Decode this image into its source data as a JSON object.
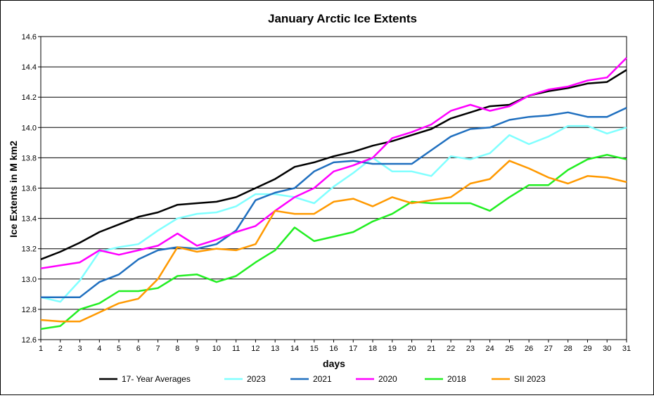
{
  "chart_data": {
    "type": "line",
    "title": "January Arctic Ice Extents",
    "xlabel": "days",
    "ylabel": "Ice Extents in M km2",
    "xlim": [
      1,
      31
    ],
    "ylim": [
      12.6,
      14.6
    ],
    "y_ticks": [
      "12.6",
      "12.8",
      "13.0",
      "13.2",
      "13.4",
      "13.6",
      "13.8",
      "14.0",
      "14.2",
      "14.4",
      "14.6"
    ],
    "x": [
      1,
      2,
      3,
      4,
      5,
      6,
      7,
      8,
      9,
      10,
      11,
      12,
      13,
      14,
      15,
      16,
      17,
      18,
      19,
      20,
      21,
      22,
      23,
      24,
      25,
      26,
      27,
      28,
      29,
      30,
      31
    ],
    "grid": "horizontal",
    "legend_position": "bottom",
    "series": [
      {
        "name": "17- Year Averages",
        "color": "#000000",
        "values": [
          13.13,
          13.18,
          13.24,
          13.31,
          13.36,
          13.41,
          13.44,
          13.49,
          13.5,
          13.51,
          13.54,
          13.6,
          13.66,
          13.74,
          13.77,
          13.81,
          13.84,
          13.88,
          13.91,
          13.95,
          13.99,
          14.06,
          14.1,
          14.14,
          14.15,
          14.21,
          14.24,
          14.26,
          14.29,
          14.3,
          14.38
        ]
      },
      {
        "name": "2023",
        "color": "#80ffff",
        "values": [
          12.88,
          12.85,
          12.99,
          13.18,
          13.21,
          13.23,
          13.32,
          13.4,
          13.43,
          13.44,
          13.48,
          13.56,
          13.56,
          13.54,
          13.5,
          13.61,
          13.7,
          13.8,
          13.71,
          13.71,
          13.68,
          13.81,
          13.79,
          13.83,
          13.95,
          13.89,
          13.94,
          14.01,
          14.01,
          13.96,
          14.0
        ]
      },
      {
        "name": "2021",
        "color": "#1f6fbf",
        "values": [
          12.88,
          12.88,
          12.88,
          12.98,
          13.03,
          13.13,
          13.19,
          13.21,
          13.2,
          13.23,
          13.32,
          13.52,
          13.57,
          13.6,
          13.71,
          13.77,
          13.78,
          13.76,
          13.76,
          13.76,
          13.85,
          13.94,
          13.99,
          14.0,
          14.05,
          14.07,
          14.08,
          14.1,
          14.07,
          14.07,
          14.13
        ]
      },
      {
        "name": "2020",
        "color": "#ff00ff",
        "values": [
          13.07,
          13.09,
          13.11,
          13.19,
          13.16,
          13.19,
          13.22,
          13.3,
          13.22,
          13.26,
          13.31,
          13.35,
          13.45,
          13.54,
          13.6,
          13.71,
          13.75,
          13.8,
          13.93,
          13.97,
          14.02,
          14.11,
          14.15,
          14.11,
          14.14,
          14.21,
          14.25,
          14.27,
          14.31,
          14.33,
          14.46
        ]
      },
      {
        "name": "2018",
        "color": "#22ee22",
        "values": [
          12.67,
          12.69,
          12.8,
          12.84,
          12.92,
          12.92,
          12.94,
          13.02,
          13.03,
          12.98,
          13.02,
          13.11,
          13.19,
          13.34,
          13.25,
          13.28,
          13.31,
          13.38,
          13.43,
          13.51,
          13.5,
          13.5,
          13.5,
          13.45,
          13.54,
          13.62,
          13.62,
          13.72,
          13.79,
          13.82,
          13.79
        ]
      },
      {
        "name": "SII 2023",
        "color": "#ff9900",
        "values": [
          12.73,
          12.72,
          12.72,
          12.78,
          12.84,
          12.87,
          13.0,
          13.21,
          13.18,
          13.2,
          13.19,
          13.23,
          13.45,
          13.43,
          13.43,
          13.51,
          13.53,
          13.48,
          13.54,
          13.5,
          13.52,
          13.54,
          13.63,
          13.66,
          13.78,
          13.73,
          13.67,
          13.63,
          13.68,
          13.67,
          13.64
        ]
      }
    ]
  }
}
